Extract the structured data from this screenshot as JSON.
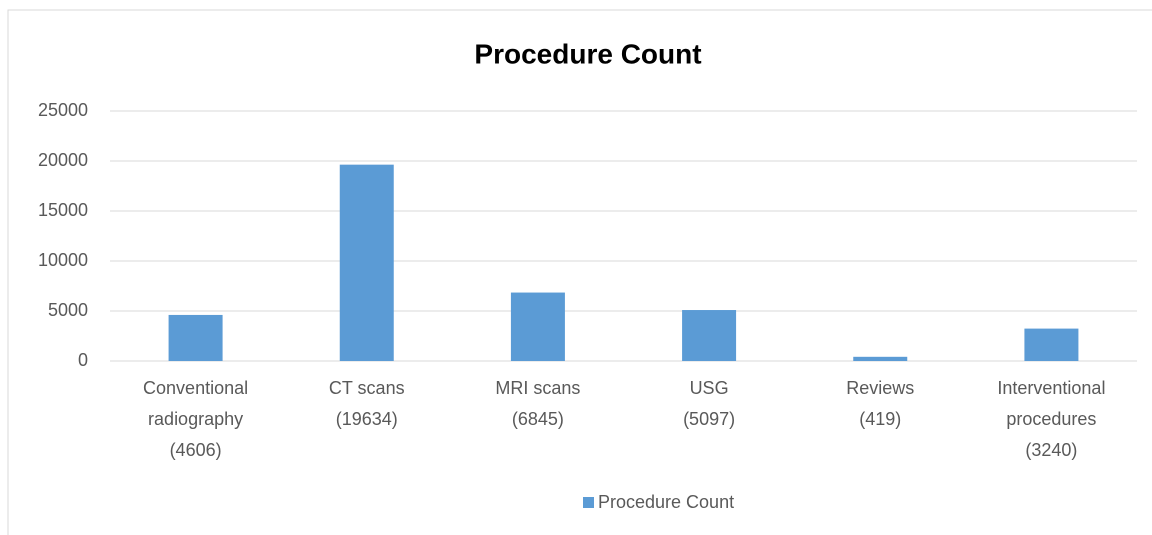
{
  "chart_data": {
    "type": "bar",
    "title": "Procedure Count",
    "categories": [
      [
        "Conventional",
        "radiography",
        "(4606)"
      ],
      [
        "CT scans",
        "(19634)"
      ],
      [
        "MRI scans",
        "(6845)"
      ],
      [
        "USG",
        "(5097)"
      ],
      [
        "Reviews",
        "(419)"
      ],
      [
        "Interventional",
        "procedures",
        "(3240)"
      ]
    ],
    "series": [
      {
        "name": "Procedure Count",
        "color": "#5b9bd5",
        "values": [
          4606,
          19634,
          6845,
          5097,
          419,
          3240
        ]
      }
    ],
    "ylim": [
      0,
      25000
    ],
    "yticks": [
      0,
      5000,
      10000,
      15000,
      20000,
      25000
    ],
    "grid": true,
    "legend": "bottom"
  }
}
